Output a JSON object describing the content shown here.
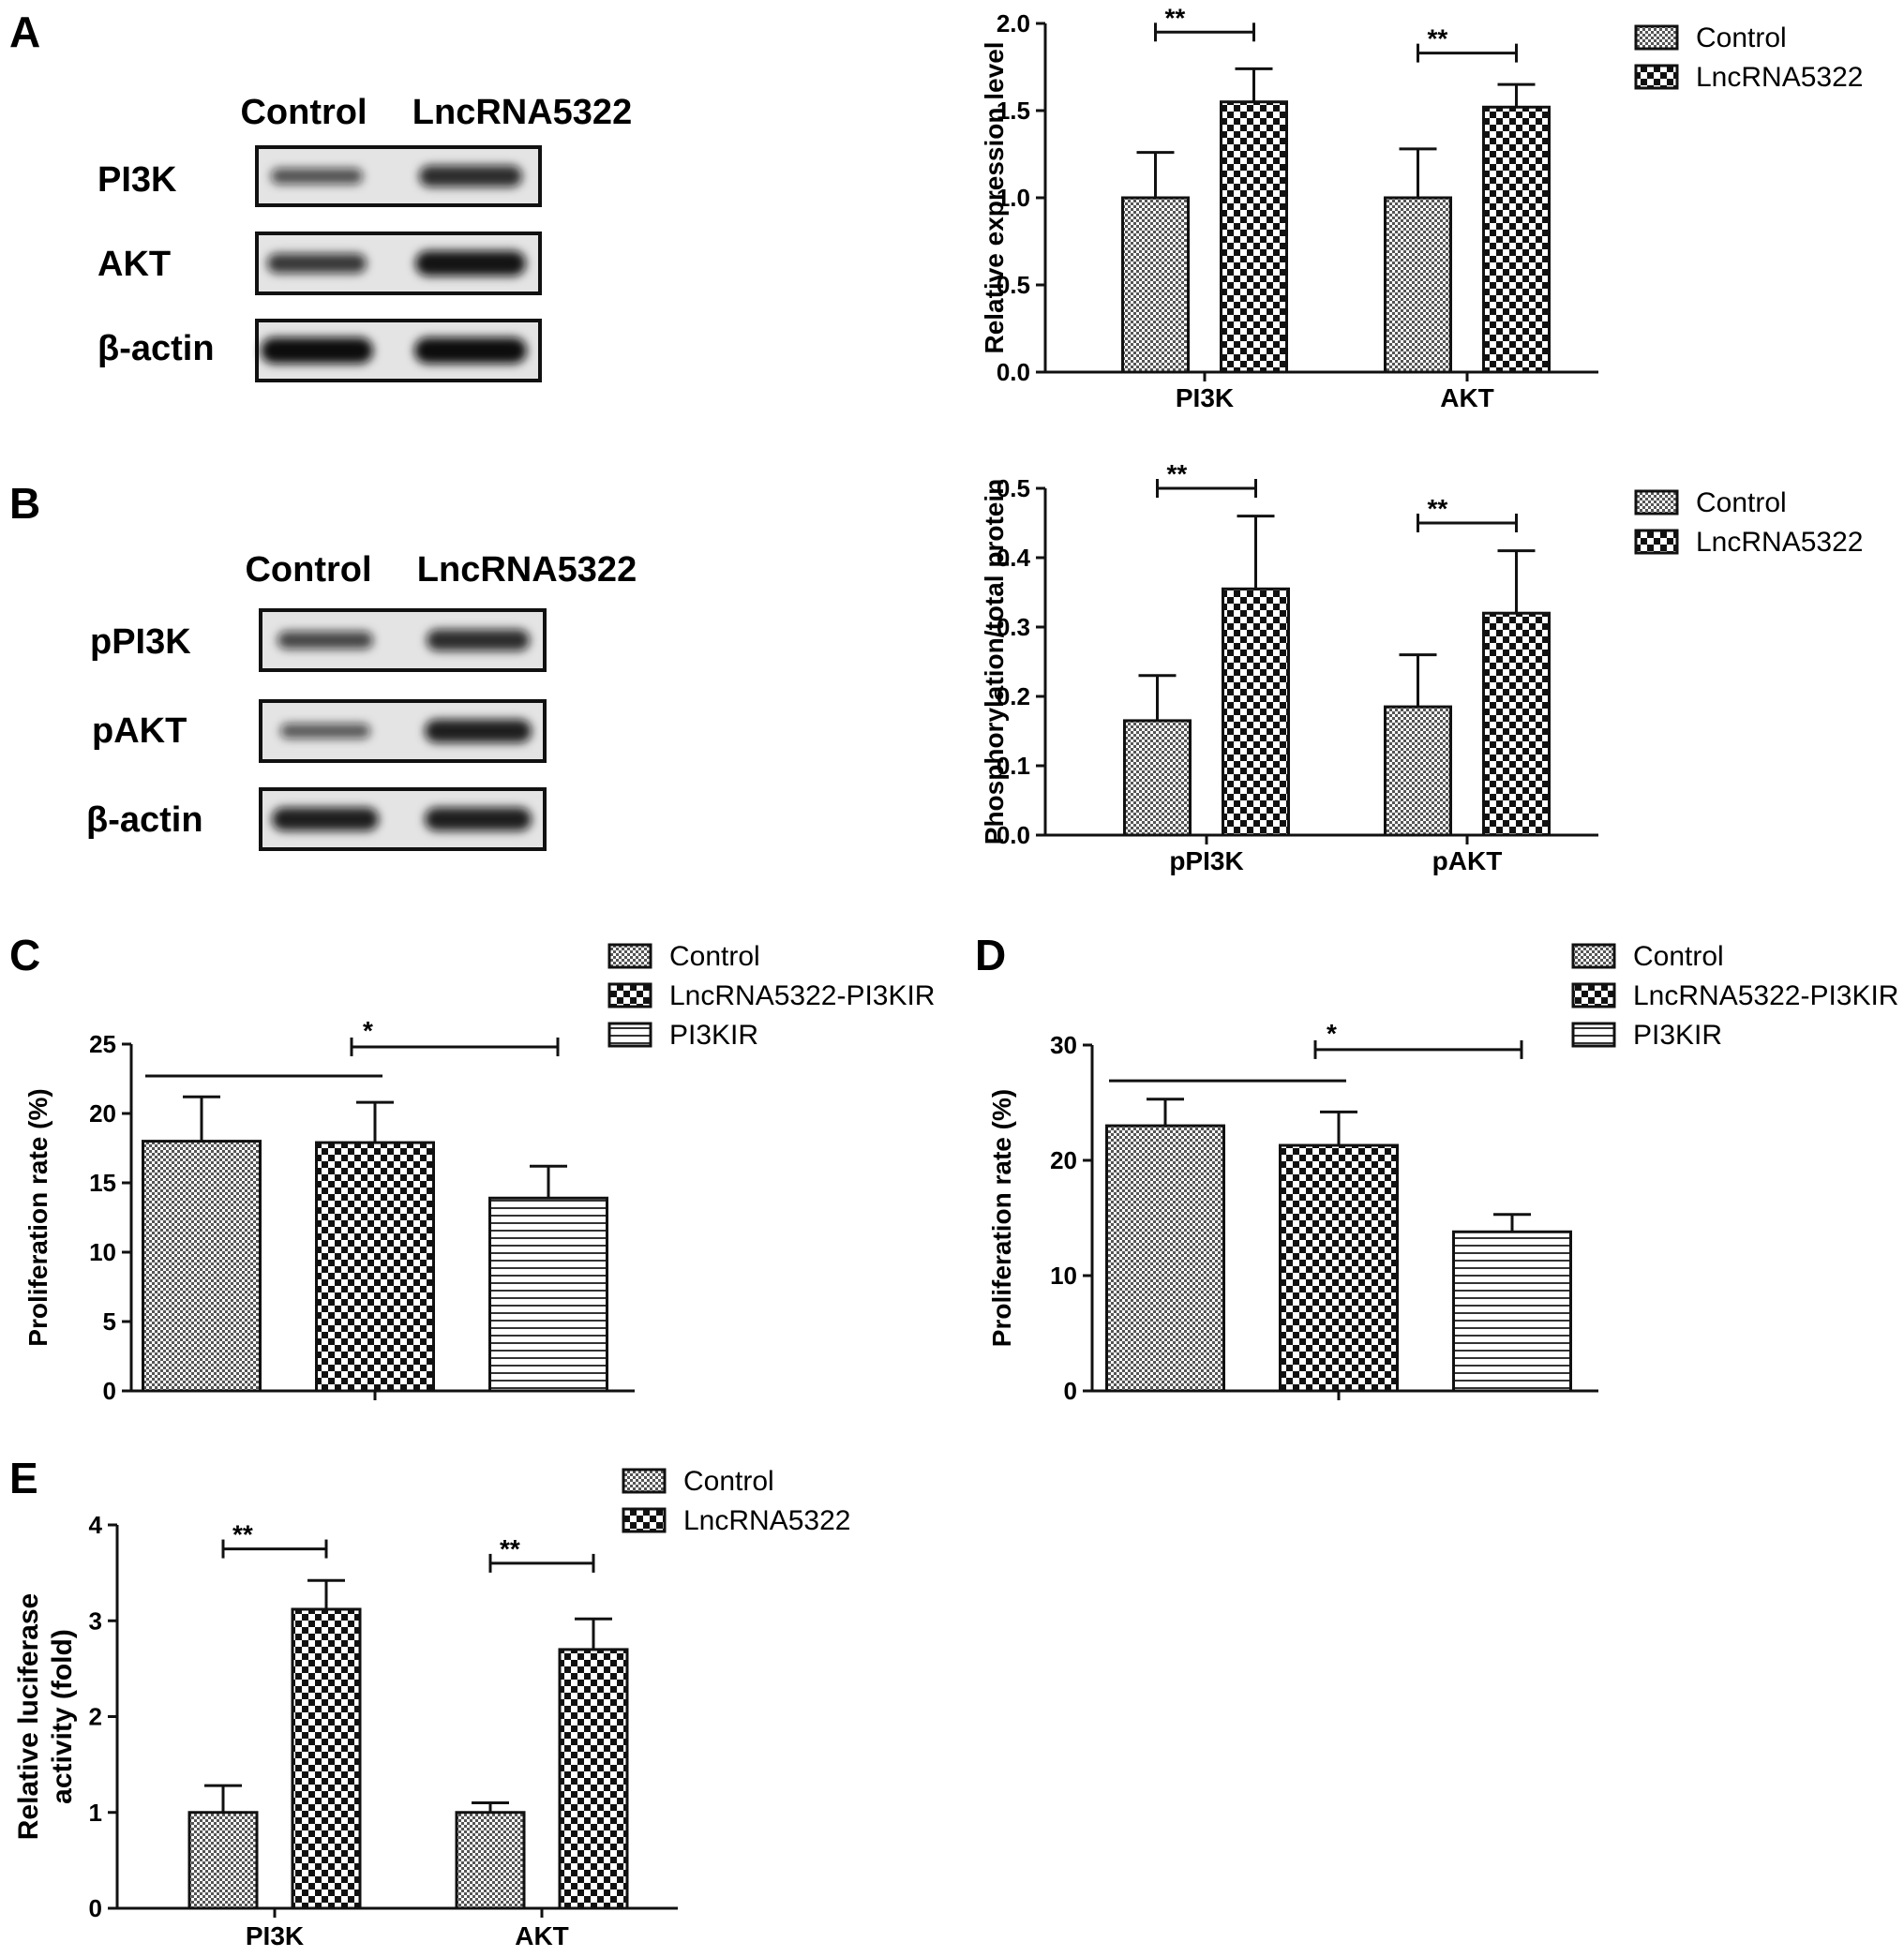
{
  "panels": {
    "A": {
      "letter": "A",
      "blot": {
        "lanes": [
          "Control",
          "LncRNA5322"
        ],
        "rows": [
          {
            "label": "PI3K",
            "intensity": [
              0.45,
              0.75
            ]
          },
          {
            "label": "AKT",
            "intensity": [
              0.65,
              0.95
            ]
          },
          {
            "label": "β-actin",
            "intensity": [
              1.0,
              1.0
            ]
          }
        ]
      }
    },
    "B": {
      "letter": "B",
      "blot": {
        "lanes": [
          "Control",
          "LncRNA5322"
        ],
        "rows": [
          {
            "label": "pPI3K",
            "intensity": [
              0.55,
              0.75
            ]
          },
          {
            "label": "pAKT",
            "intensity": [
              0.4,
              0.85
            ]
          },
          {
            "label": "β-actin",
            "intensity": [
              0.85,
              0.85
            ]
          }
        ]
      }
    },
    "C": {
      "letter": "C"
    },
    "D": {
      "letter": "D"
    },
    "E": {
      "letter": "E"
    }
  },
  "chart_data": [
    {
      "id": "A",
      "type": "bar",
      "categories": [
        "PI3K",
        "AKT"
      ],
      "series": [
        {
          "name": "Control",
          "pattern": "fine",
          "values": [
            1.0,
            1.0
          ],
          "errors": [
            0.26,
            0.28
          ]
        },
        {
          "name": "LncRNA5322",
          "pattern": "checker",
          "values": [
            1.55,
            1.52
          ],
          "errors": [
            0.19,
            0.13
          ]
        }
      ],
      "ylabel": "Relative expression level",
      "ylim": [
        0,
        2.0
      ],
      "yticks": [
        "0.0",
        "0.5",
        "1.0",
        "1.5",
        "2.0"
      ],
      "significance": [
        {
          "category": 0,
          "label": "**",
          "y": 1.95
        },
        {
          "category": 1,
          "label": "**",
          "y": 1.83
        }
      ],
      "legend": "right"
    },
    {
      "id": "B",
      "type": "bar",
      "categories": [
        "pPI3K",
        "pAKT"
      ],
      "series": [
        {
          "name": "Control",
          "pattern": "fine",
          "values": [
            0.165,
            0.185
          ],
          "errors": [
            0.065,
            0.075
          ]
        },
        {
          "name": "LncRNA5322",
          "pattern": "checker",
          "values": [
            0.355,
            0.32
          ],
          "errors": [
            0.105,
            0.09
          ]
        }
      ],
      "ylabel": "Phosphorylation/total protein",
      "ylim": [
        0,
        0.5
      ],
      "yticks": [
        "0.0",
        "0.1",
        "0.2",
        "0.3",
        "0.4",
        "0.5"
      ],
      "significance": [
        {
          "category": 0,
          "label": "**",
          "y": 0.5
        },
        {
          "category": 1,
          "label": "**",
          "y": 0.45
        }
      ],
      "legend": "right"
    },
    {
      "id": "C",
      "type": "bar",
      "categories": [
        ""
      ],
      "series": [
        {
          "name": "Control",
          "pattern": "fine",
          "values": [
            18.0
          ],
          "errors": [
            3.2
          ]
        },
        {
          "name": "LncRNA5322-PI3KIR",
          "pattern": "checker",
          "values": [
            17.9
          ],
          "errors": [
            2.9
          ]
        },
        {
          "name": "PI3KIR",
          "pattern": "stripes",
          "values": [
            13.9
          ],
          "errors": [
            2.3
          ]
        }
      ],
      "ylabel": "Proliferation rate (%)",
      "ylim": [
        0,
        25
      ],
      "yticks": [
        "0",
        "5",
        "10",
        "15",
        "20",
        "25"
      ],
      "significance_lines": [
        {
          "label": "*",
          "y": 24.8
        },
        {
          "y": 22.7
        }
      ],
      "legend": "top-right"
    },
    {
      "id": "D",
      "type": "bar",
      "categories": [
        ""
      ],
      "series": [
        {
          "name": "Control",
          "pattern": "fine",
          "values": [
            23.0
          ],
          "errors": [
            2.3
          ]
        },
        {
          "name": "LncRNA5322-PI3KIR",
          "pattern": "checker",
          "values": [
            21.3
          ],
          "errors": [
            2.9
          ]
        },
        {
          "name": "PI3KIR",
          "pattern": "stripes",
          "values": [
            13.8
          ],
          "errors": [
            1.5
          ]
        }
      ],
      "ylabel": "Proliferation rate (%)",
      "ylim": [
        0,
        30
      ],
      "yticks": [
        "0",
        "10",
        "20",
        "30"
      ],
      "significance_lines": [
        {
          "label": "*",
          "y": 29.6
        },
        {
          "y": 26.9
        }
      ],
      "legend": "top-right"
    },
    {
      "id": "E",
      "type": "bar",
      "categories": [
        "PI3K",
        "AKT"
      ],
      "series": [
        {
          "name": "Control",
          "pattern": "fine",
          "values": [
            1.0,
            1.0
          ],
          "errors": [
            0.28,
            0.1
          ]
        },
        {
          "name": "LncRNA5322",
          "pattern": "checker",
          "values": [
            3.12,
            2.7
          ],
          "errors": [
            0.3,
            0.32
          ]
        }
      ],
      "ylabel": "Relative luciferase activity (fold)",
      "ylabel_lines": [
        "Relative luciferase",
        "activity (fold)"
      ],
      "ylim": [
        0,
        4
      ],
      "yticks": [
        "0",
        "1",
        "2",
        "3",
        "4"
      ],
      "significance": [
        {
          "category": 0,
          "label": "**",
          "y": 3.75
        },
        {
          "category": 1,
          "label": "**",
          "y": 3.6
        }
      ],
      "legend": "top-right"
    }
  ]
}
